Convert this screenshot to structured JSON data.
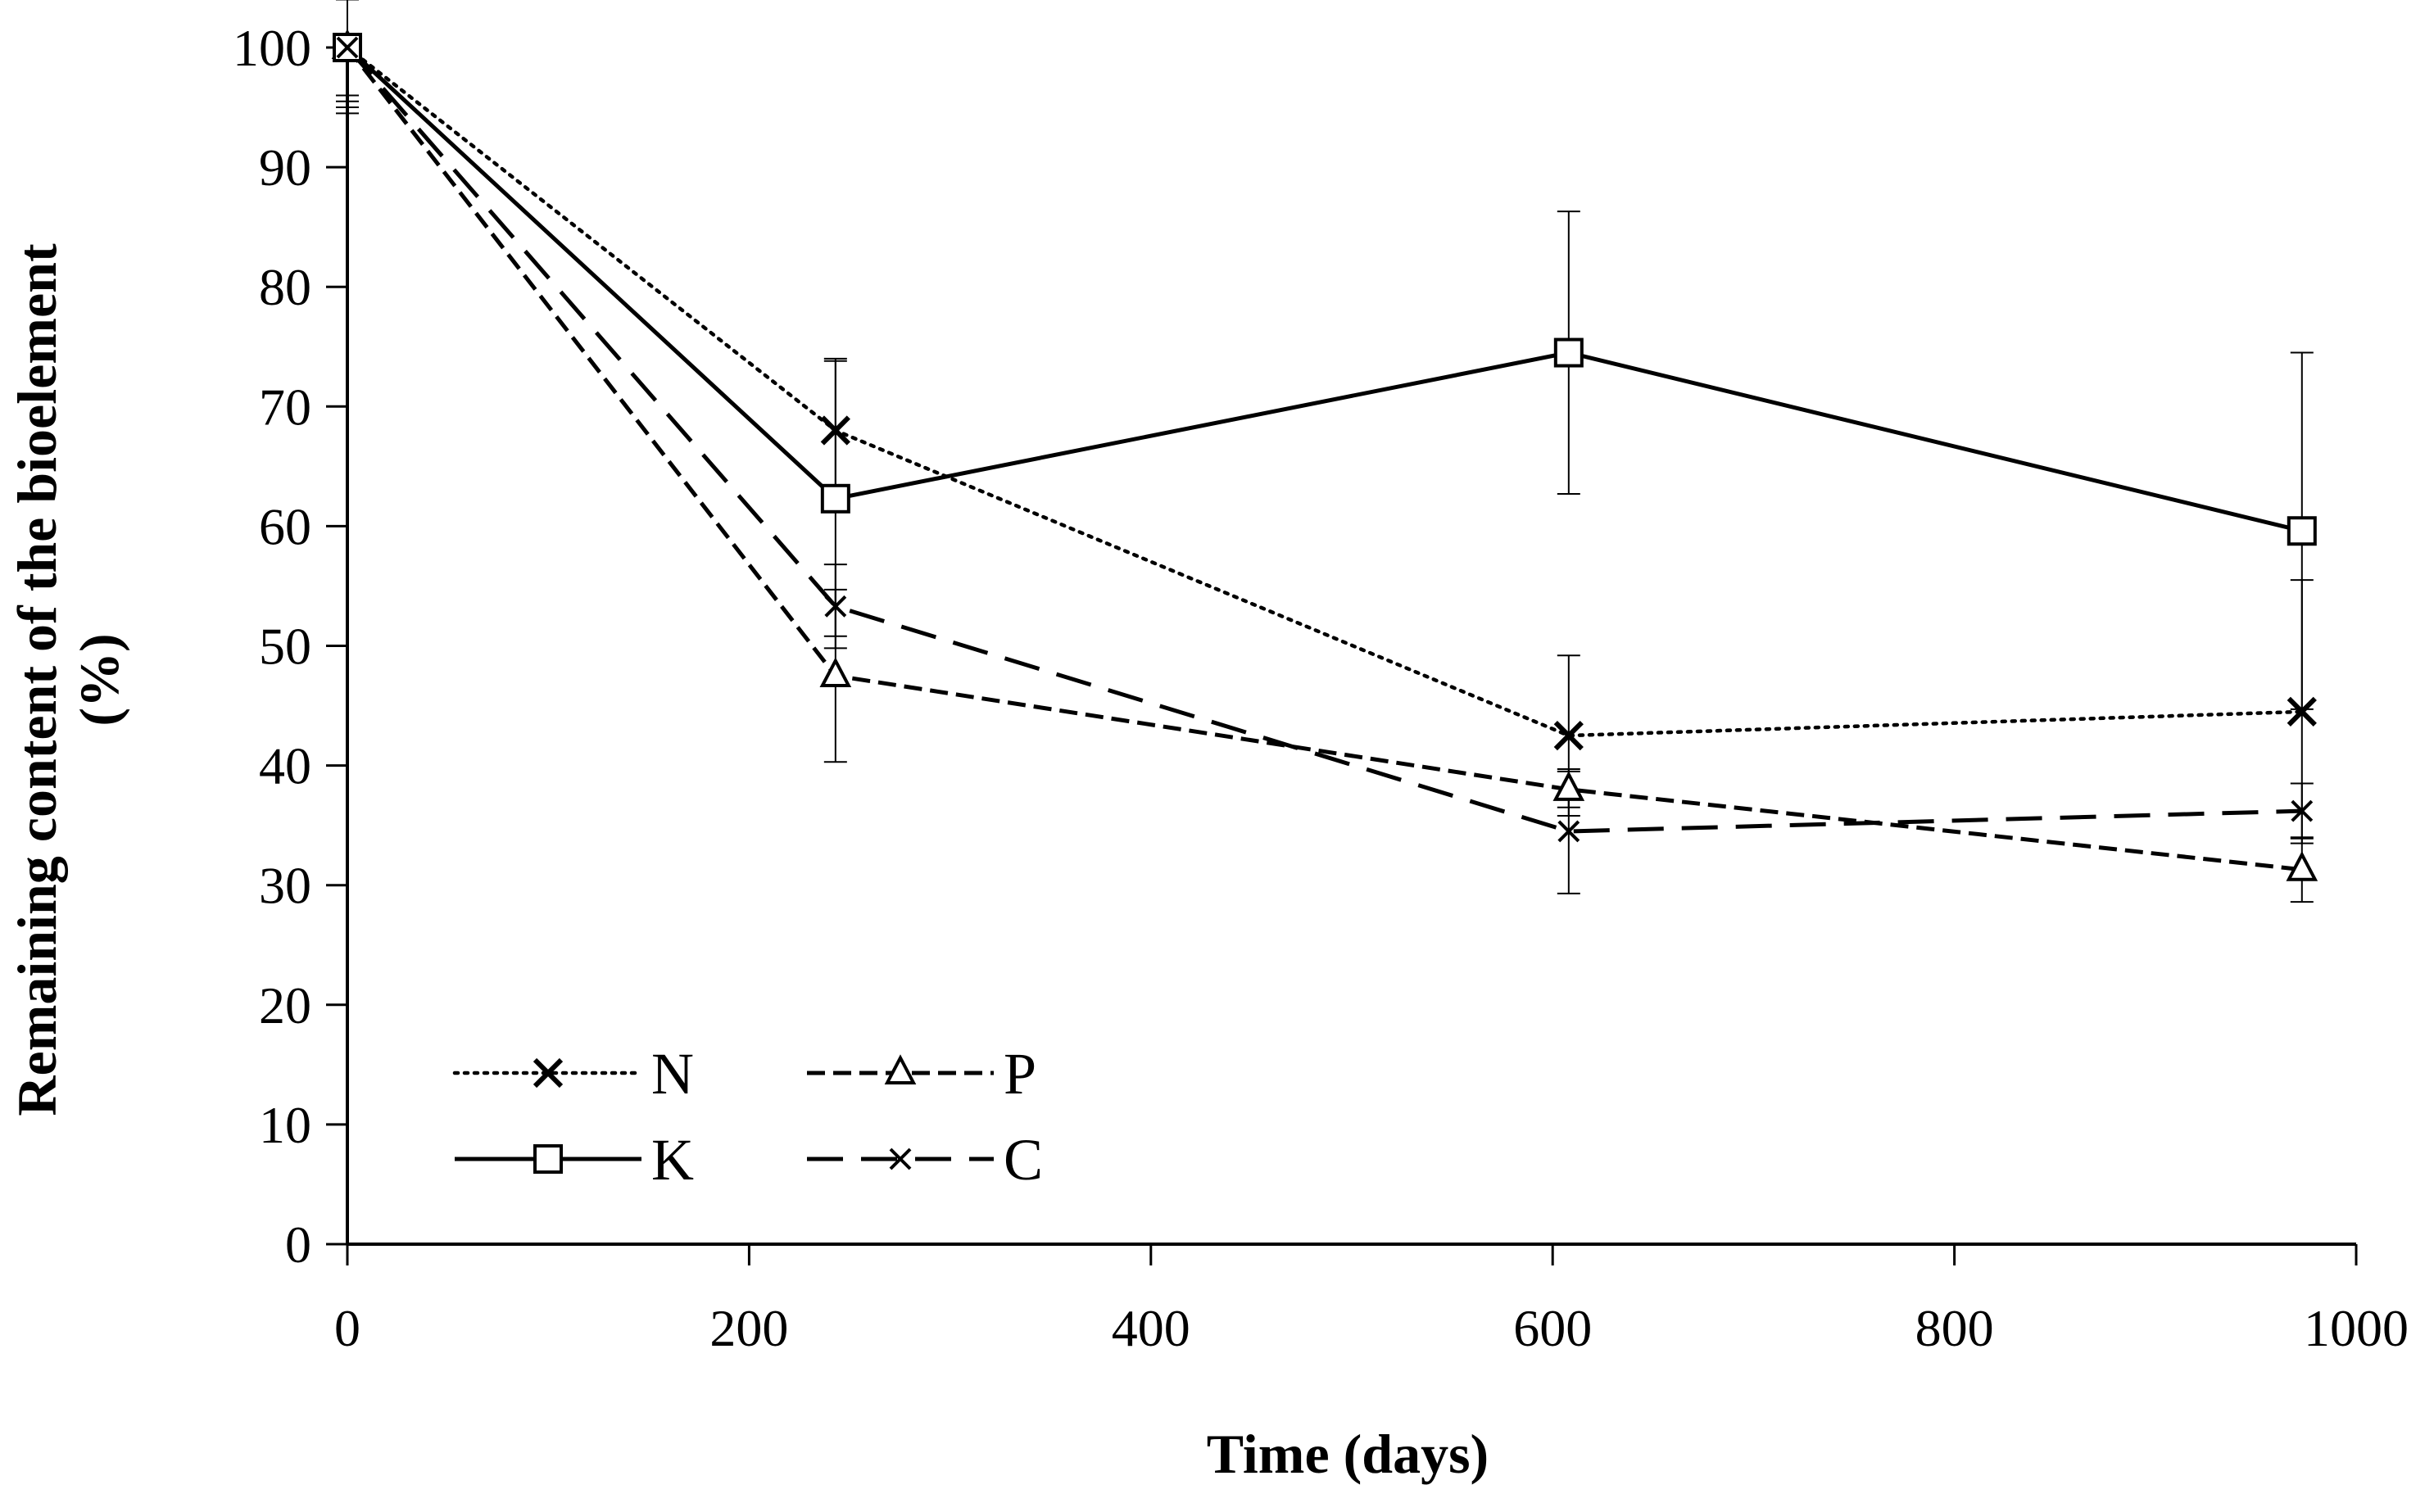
{
  "chart_data": {
    "type": "line",
    "title": "",
    "xlabel": "Time (days)",
    "ylabel_line1": "Remaining content of the bioelement",
    "ylabel_line2": "(%)",
    "xlim": [
      0,
      1000
    ],
    "ylim": [
      0,
      100
    ],
    "x_ticks": [
      0,
      200,
      400,
      600,
      800,
      1000
    ],
    "y_ticks": [
      0,
      10,
      20,
      30,
      40,
      50,
      60,
      70,
      80,
      90,
      100
    ],
    "x_tick_labels": [
      "0",
      "200",
      "400",
      "600",
      "800",
      "1000"
    ],
    "y_tick_labels": [
      "0",
      "10",
      "20",
      "30",
      "40",
      "50",
      "60",
      "70",
      "80",
      "90",
      "100"
    ],
    "grid": false,
    "legend_position": "bottom-left",
    "x": [
      0,
      243,
      608,
      973
    ],
    "series": [
      {
        "name": "N",
        "values": [
          100,
          68,
          42.5,
          44.5
        ],
        "errors": [
          5.5,
          6,
          6.7,
          11
        ],
        "line_style": "dotted",
        "marker": "x-bold"
      },
      {
        "name": "P",
        "values": [
          100,
          47.5,
          38,
          31.3
        ],
        "errors": [
          5,
          7.2,
          1.5,
          2.7
        ],
        "line_style": "short-dash",
        "marker": "triangle"
      },
      {
        "name": "K",
        "values": [
          100,
          62.3,
          74.5,
          59.6
        ],
        "errors": [
          4,
          11.5,
          11.8,
          14.9
        ],
        "line_style": "solid",
        "marker": "square"
      },
      {
        "name": "C",
        "values": [
          100,
          53.3,
          34.5,
          36.2
        ],
        "errors": [
          4.5,
          3.5,
          5.2,
          2.3
        ],
        "line_style": "long-dash",
        "marker": "x-thin"
      }
    ]
  }
}
